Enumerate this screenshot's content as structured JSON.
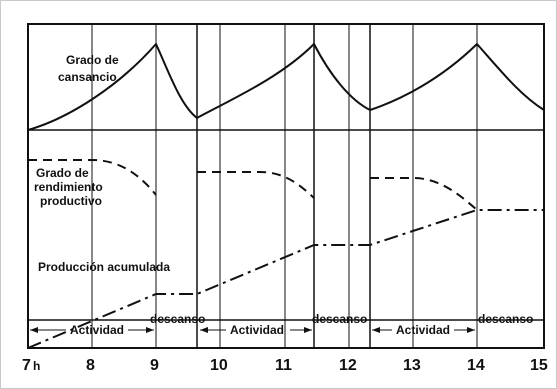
{
  "labels": {
    "fatigue": [
      "Grado de",
      "cansancio"
    ],
    "performance": [
      "Grado de",
      "rendimiento",
      "productivo"
    ],
    "cumulative": "Producción acumulada"
  },
  "periods": [
    {
      "label": "Actividad",
      "start": 7,
      "end": 9
    },
    {
      "label": "descanso",
      "start": 9,
      "end": 9.67
    },
    {
      "label": "Actividad",
      "start": 9.67,
      "end": 11.5
    },
    {
      "label": "descanso",
      "start": 11.5,
      "end": 12.33
    },
    {
      "label": "Actividad",
      "start": 12.33,
      "end": 14
    },
    {
      "label": "descanso",
      "start": 14,
      "end": 15
    }
  ],
  "x_ticks": [
    {
      "value": 7,
      "label": "7",
      "suffix": "h"
    },
    {
      "value": 8,
      "label": "8"
    },
    {
      "value": 9,
      "label": "9"
    },
    {
      "value": 10,
      "label": "10"
    },
    {
      "value": 11,
      "label": "11"
    },
    {
      "value": 12,
      "label": "12"
    },
    {
      "value": 13,
      "label": "13"
    },
    {
      "value": 14,
      "label": "14"
    },
    {
      "value": 15,
      "label": "15"
    }
  ]
}
